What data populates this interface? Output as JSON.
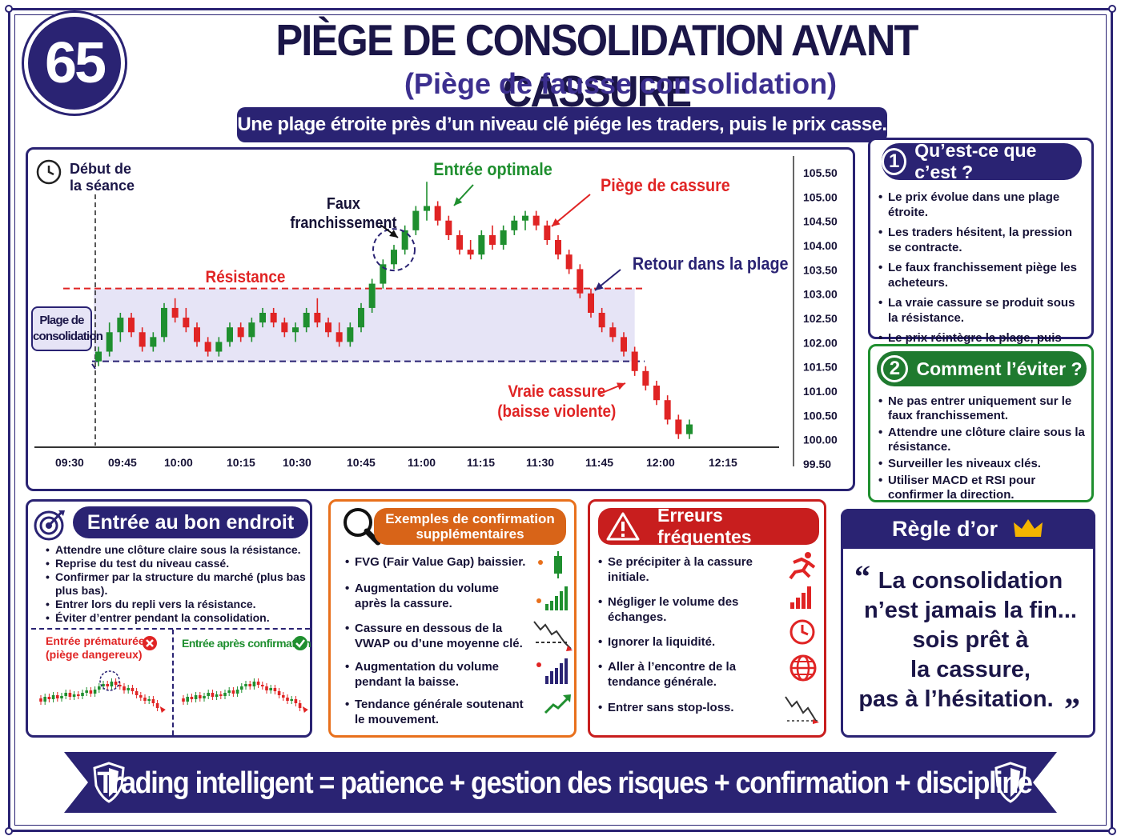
{
  "number": "65",
  "title": "PIÈGE DE CONSOLIDATION AVANT CASSURE",
  "subtitle": "(Piège de fausse consolidation)",
  "banner": "Une plage étroite près d’un niveau clé piége les traders, puis le prix casse.",
  "chart": {
    "start_session_1": "Début de",
    "start_session_2": "la séance",
    "fake_break_1": "Faux",
    "fake_break_2": "franchissement",
    "optimal_entry": "Entrée optimale",
    "break_trap": "Piège de cassure",
    "back_in_range": "Retour dans la plage",
    "resistance": "Résistance",
    "range_1": "Plage de",
    "range_2": "consolidation",
    "true_break_1": "Vraie cassure",
    "true_break_2": "(baisse violente)",
    "colors": {
      "up": "#1f8f2f",
      "down": "#e02424",
      "resistance": "#e02424",
      "range": "#e6e4f6",
      "support": "#2a2373"
    }
  },
  "chart_data": {
    "type": "candlestick",
    "x_ticks": [
      "09:30",
      "09:45",
      "10:00",
      "10:15",
      "10:30",
      "10:45",
      "11:00",
      "11:15",
      "11:30",
      "11:45",
      "12:00",
      "12:15"
    ],
    "y_ticks": [
      "105.50",
      "105.00",
      "104.50",
      "104.00",
      "103.50",
      "103.00",
      "102.50",
      "102.00",
      "101.50",
      "101.00",
      "100.50",
      "100.00",
      "99.50"
    ],
    "ylim": [
      99.5,
      105.5
    ],
    "resistance": 103.0,
    "support": 101.5,
    "candles": [
      [
        101.5,
        101.8,
        101.4,
        101.7
      ],
      [
        101.7,
        102.3,
        101.6,
        102.1
      ],
      [
        102.1,
        102.5,
        101.9,
        102.4
      ],
      [
        102.4,
        102.5,
        102.0,
        102.1
      ],
      [
        102.1,
        102.2,
        101.7,
        101.8
      ],
      [
        101.8,
        102.1,
        101.7,
        102.0
      ],
      [
        102.0,
        102.7,
        101.9,
        102.6
      ],
      [
        102.6,
        102.8,
        102.3,
        102.4
      ],
      [
        102.4,
        102.6,
        102.1,
        102.2
      ],
      [
        102.2,
        102.3,
        101.8,
        101.9
      ],
      [
        101.9,
        102.0,
        101.6,
        101.7
      ],
      [
        101.7,
        102.0,
        101.6,
        101.9
      ],
      [
        101.9,
        102.3,
        101.8,
        102.2
      ],
      [
        102.2,
        102.3,
        101.9,
        102.0
      ],
      [
        102.0,
        102.4,
        101.9,
        102.3
      ],
      [
        102.3,
        102.6,
        102.2,
        102.5
      ],
      [
        102.5,
        102.6,
        102.2,
        102.3
      ],
      [
        102.3,
        102.4,
        102.0,
        102.1
      ],
      [
        102.1,
        102.3,
        101.9,
        102.2
      ],
      [
        102.2,
        102.6,
        102.1,
        102.5
      ],
      [
        102.5,
        102.8,
        102.2,
        102.3
      ],
      [
        102.3,
        102.4,
        102.0,
        102.1
      ],
      [
        102.1,
        102.3,
        101.8,
        101.9
      ],
      [
        101.9,
        102.3,
        101.8,
        102.2
      ],
      [
        102.2,
        102.7,
        102.1,
        102.6
      ],
      [
        102.6,
        103.2,
        102.5,
        103.1
      ],
      [
        103.1,
        103.6,
        103.0,
        103.5
      ],
      [
        103.5,
        103.9,
        103.4,
        103.8
      ],
      [
        103.8,
        104.3,
        103.7,
        104.2
      ],
      [
        104.2,
        104.7,
        104.1,
        104.6
      ],
      [
        104.6,
        105.2,
        104.4,
        104.7
      ],
      [
        104.7,
        104.8,
        104.3,
        104.4
      ],
      [
        104.4,
        104.5,
        104.0,
        104.1
      ],
      [
        104.1,
        104.2,
        103.7,
        103.8
      ],
      [
        103.8,
        104.0,
        103.6,
        103.7
      ],
      [
        103.7,
        104.2,
        103.6,
        104.1
      ],
      [
        104.1,
        104.3,
        103.8,
        103.9
      ],
      [
        103.9,
        104.3,
        103.8,
        104.2
      ],
      [
        104.2,
        104.5,
        104.1,
        104.4
      ],
      [
        104.4,
        104.6,
        104.2,
        104.5
      ],
      [
        104.5,
        104.6,
        104.2,
        104.3
      ],
      [
        104.3,
        104.4,
        103.9,
        104.0
      ],
      [
        104.0,
        104.1,
        103.6,
        103.7
      ],
      [
        103.7,
        103.8,
        103.3,
        103.4
      ],
      [
        103.4,
        103.5,
        102.8,
        102.9
      ],
      [
        102.9,
        103.0,
        102.4,
        102.5
      ],
      [
        102.5,
        102.6,
        102.1,
        102.2
      ],
      [
        102.2,
        102.3,
        101.9,
        102.0
      ],
      [
        102.0,
        102.1,
        101.6,
        101.7
      ],
      [
        101.7,
        101.8,
        101.2,
        101.3
      ],
      [
        101.3,
        101.4,
        100.9,
        101.0
      ],
      [
        101.0,
        101.1,
        100.6,
        100.7
      ],
      [
        100.7,
        100.8,
        100.2,
        100.3
      ],
      [
        100.3,
        100.4,
        99.9,
        100.0
      ],
      [
        100.0,
        100.3,
        99.9,
        100.2
      ]
    ]
  },
  "what": {
    "title": "Qu’est-ce que c’est ?",
    "num": "1",
    "items": [
      "Le prix évolue dans une plage étroite.",
      "Les traders hésitent, la pression se contracte.",
      "Le faux franchissement piège les acheteurs.",
      "La vraie cassure se produit sous la résistance.",
      "Le prix réintègre la plage, puis chute."
    ]
  },
  "avoid": {
    "title": "Comment l’éviter ?",
    "num": "2",
    "items": [
      "Ne pas entrer uniquement sur le faux franchissement.",
      "Attendre une clôture claire sous la résistance.",
      "Surveiller les niveaux clés.",
      "Utiliser MACD et RSI pour confirmer la direction."
    ]
  },
  "entry": {
    "title": "Entrée au bon endroit",
    "items": [
      "Attendre une clôture claire sous la résistance.",
      "Reprise du test du niveau cassé.",
      "Confirmer par la structure du marché (plus bas plus bas).",
      "Entrer lors du repli vers la résistance.",
      "Éviter d’entrer pendant la consolidation."
    ],
    "bad_1": "Entrée prématurée",
    "bad_2": "(piège dangereux)",
    "good": "Entrée après confirmation"
  },
  "confirm": {
    "title_1": "Exemples de confirmation",
    "title_2": "supplémentaires",
    "items": [
      "FVG (Fair Value Gap) baissier.",
      "Augmentation du volume après la cassure.",
      "Cassure en dessous de la VWAP ou d’une moyenne clé.",
      "Augmentation du volume pendant la baisse.",
      "Tendance générale soutenant le mouvement."
    ]
  },
  "errors": {
    "title": "Erreurs fréquentes",
    "items": [
      "Se précipiter à la cassure initiale.",
      "Négliger le volume des échanges.",
      "Ignorer la liquidité.",
      "Aller à l’encontre de la tendance générale.",
      "Entrer sans stop-loss."
    ]
  },
  "gold": {
    "title": "Règle d’or",
    "quote": [
      "La consolidation",
      "n’est jamais la fin...",
      "sois prêt à",
      "la cassure,",
      "pas à l’hésitation."
    ]
  },
  "footer": "Trading intelligent = patience + gestion des risques + confirmation + discipline"
}
